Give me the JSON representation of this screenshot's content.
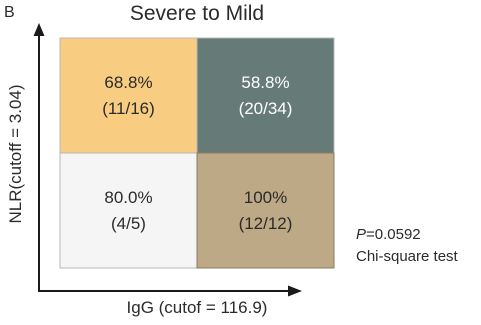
{
  "panel_label": "B",
  "chart_data": {
    "type": "heatmap",
    "title": "Severe to Mild",
    "xlabel": "IgG (cutof = 116.9)",
    "ylabel": "NLR(cutoff = 3.04)",
    "grid": "2x2",
    "cells": [
      {
        "row": "high",
        "col": "low",
        "percent": "68.8%",
        "fraction": "(11/16)",
        "value": 68.8,
        "n": 11,
        "total": 16,
        "color": "#f9cd81"
      },
      {
        "row": "high",
        "col": "high",
        "percent": "58.8%",
        "fraction": "(20/34)",
        "value": 58.8,
        "n": 20,
        "total": 34,
        "color": "#667a78"
      },
      {
        "row": "low",
        "col": "low",
        "percent": "80.0%",
        "fraction": "(4/5)",
        "value": 80.0,
        "n": 4,
        "total": 5,
        "color": "#f5f5f5"
      },
      {
        "row": "low",
        "col": "high",
        "percent": "100%",
        "fraction": "(12/12)",
        "value": 100,
        "n": 12,
        "total": 12,
        "color": "#bda985"
      }
    ],
    "annotation": {
      "p_symbol": "P",
      "p_value": "=0.0592",
      "test": "Chi-square test"
    }
  }
}
